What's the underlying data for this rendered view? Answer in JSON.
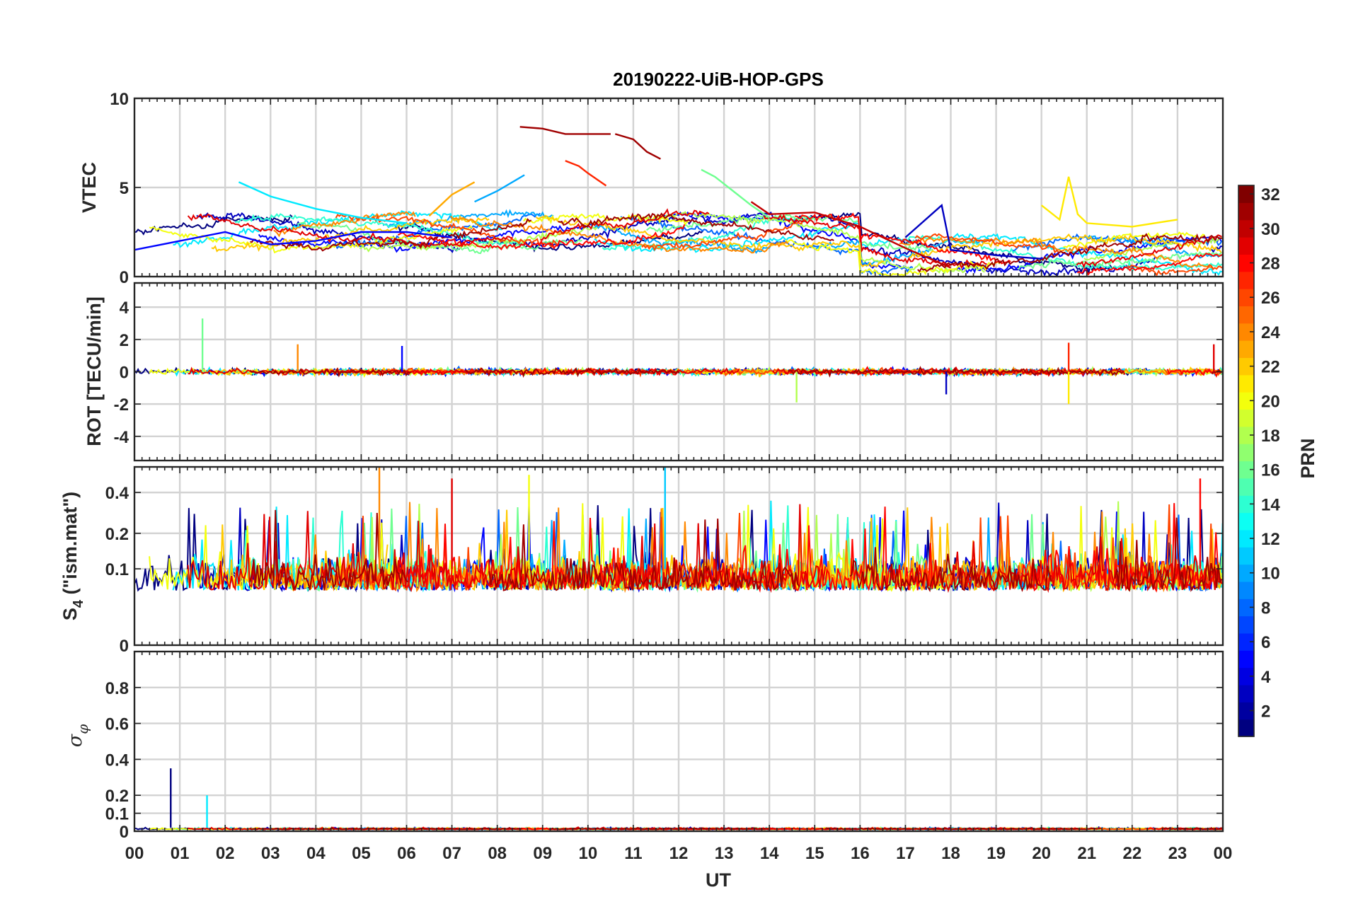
{
  "chart_data": {
    "type": "line",
    "title": "20190222-UiB-HOP-GPS",
    "x_axis": {
      "label": "UT",
      "range_hours": [
        0,
        24
      ],
      "tick_labels": [
        "00",
        "01",
        "02",
        "03",
        "04",
        "05",
        "06",
        "07",
        "08",
        "09",
        "10",
        "11",
        "12",
        "13",
        "14",
        "15",
        "16",
        "17",
        "18",
        "19",
        "20",
        "21",
        "22",
        "23",
        "00"
      ]
    },
    "grid": true,
    "panels": [
      {
        "id": "vtec",
        "ylabel": "VTEC",
        "ylim": [
          0,
          10
        ],
        "yticks": [
          0,
          5,
          10
        ],
        "yticklabels": [
          "0",
          "5",
          "10"
        ],
        "approx_baseline": 2.5,
        "series": [
          {
            "prn": 31,
            "x": [
              8.5,
              9.0,
              9.5,
              10.0,
              10.5
            ],
            "y": [
              8.4,
              8.3,
              8.0,
              8.0,
              8.0
            ]
          },
          {
            "prn": 31,
            "x": [
              10.6,
              11.0,
              11.3,
              11.6
            ],
            "y": [
              8.0,
              7.7,
              7.0,
              6.6
            ]
          },
          {
            "prn": 27,
            "x": [
              9.5,
              9.8,
              10.0,
              10.4
            ],
            "y": [
              6.5,
              6.2,
              5.8,
              5.1
            ]
          },
          {
            "prn": 21,
            "x": [
              20.0,
              20.4,
              20.6,
              20.8,
              21.0,
              22.0,
              23.0
            ],
            "y": [
              4.0,
              3.2,
              5.6,
              3.5,
              3.0,
              2.8,
              3.2
            ]
          },
          {
            "prn": 16,
            "x": [
              12.5,
              12.8,
              13.2,
              13.6,
              14.0
            ],
            "y": [
              6.0,
              5.6,
              4.8,
              4.0,
              3.3
            ]
          },
          {
            "prn": 12,
            "x": [
              2.3,
              3.0,
              4.0,
              5.0,
              6.0
            ],
            "y": [
              5.3,
              4.5,
              3.8,
              3.3,
              3.0
            ]
          },
          {
            "prn": 23,
            "x": [
              6.5,
              7.0,
              7.5
            ],
            "y": [
              3.4,
              4.6,
              5.3
            ]
          },
          {
            "prn": 10,
            "x": [
              7.5,
              8.0,
              8.6
            ],
            "y": [
              4.2,
              4.8,
              5.7
            ]
          },
          {
            "prn": 30,
            "x": [
              13.6,
              14.0,
              15.0,
              16.0,
              17.0,
              18.0
            ],
            "y": [
              4.2,
              3.5,
              3.6,
              2.8,
              1.6,
              0.5
            ]
          },
          {
            "prn": 3,
            "x": [
              17.0,
              17.8,
              18.0,
              19.0,
              20.0
            ],
            "y": [
              2.2,
              4.0,
              1.5,
              1.2,
              1.0
            ]
          },
          {
            "prn": 5,
            "x": [
              0.0,
              1.0,
              2.0,
              3.0,
              4.0,
              5.0,
              6.0,
              7.0
            ],
            "y": [
              1.5,
              2.0,
              2.5,
              1.8,
              2.0,
              2.5,
              2.5,
              2.2
            ]
          }
        ]
      },
      {
        "id": "rot",
        "ylabel": "ROT [TECU/min]",
        "ylim": [
          -5.5,
          5.5
        ],
        "yticks": [
          -4,
          -2,
          0,
          2,
          4
        ],
        "yticklabels": [
          "-4",
          "-2",
          "0",
          "2",
          "4"
        ],
        "approx_baseline": 0.0,
        "notable_spikes": [
          {
            "x": 1.5,
            "y": 3.3,
            "prn": 16
          },
          {
            "x": 3.6,
            "y": 1.7,
            "prn": 24
          },
          {
            "x": 5.9,
            "y": 1.6,
            "prn": 5
          },
          {
            "x": 14.6,
            "y": -1.9,
            "prn": 18
          },
          {
            "x": 17.9,
            "y": -1.4,
            "prn": 3
          },
          {
            "x": 20.6,
            "y": 1.8,
            "prn": 27
          },
          {
            "x": 20.6,
            "y": -2.0,
            "prn": 21
          },
          {
            "x": 23.8,
            "y": 1.7,
            "prn": 29
          }
        ]
      },
      {
        "id": "s4",
        "ylabel": "S4 (\"ism.mat\")",
        "ylabel_main": "S",
        "ylabel_sub": "4",
        "ylabel_rest": " (\"ism.mat\")",
        "ylim": [
          0,
          0.6
        ],
        "scale": "log",
        "yticks": [
          0,
          0.1,
          0.2,
          0.4
        ],
        "yticklabels": [
          "0",
          "0.1",
          "0.2",
          "0.4"
        ],
        "approx_baseline": 0.1,
        "notable_spikes": [
          {
            "x": 5.4,
            "y": 0.6,
            "prn": 24
          },
          {
            "x": 11.7,
            "y": 0.6,
            "prn": 11
          },
          {
            "x": 8.7,
            "y": 0.53,
            "prn": 20
          },
          {
            "x": 7.0,
            "y": 0.5,
            "prn": 29
          },
          {
            "x": 23.5,
            "y": 0.5,
            "prn": 28
          }
        ]
      },
      {
        "id": "sigma_phi",
        "ylabel": "σφ",
        "ylabel_sigma": "σ",
        "ylabel_sub": "φ",
        "ylim": [
          0,
          1.0
        ],
        "yticks": [
          0,
          0.1,
          0.2,
          0.4,
          0.6,
          0.8
        ],
        "yticklabels": [
          "0",
          "0.1",
          "0.2",
          "0.4",
          "0.6",
          "0.8"
        ],
        "approx_baseline": 0.02,
        "notable_spikes": [
          {
            "x": 0.8,
            "y": 0.35,
            "prn": 1
          },
          {
            "x": 1.6,
            "y": 0.2,
            "prn": 12
          }
        ]
      }
    ],
    "colorbar": {
      "label": "PRN",
      "range": [
        1,
        32
      ],
      "colormap": "jet",
      "ticks": [
        2,
        4,
        6,
        8,
        10,
        12,
        14,
        16,
        18,
        20,
        22,
        24,
        26,
        28,
        30,
        32
      ],
      "ticklabels": [
        "2",
        "4",
        "6",
        "8",
        "10",
        "12",
        "14",
        "16",
        "18",
        "20",
        "22",
        "24",
        "26",
        "28",
        "30",
        "32"
      ]
    }
  }
}
